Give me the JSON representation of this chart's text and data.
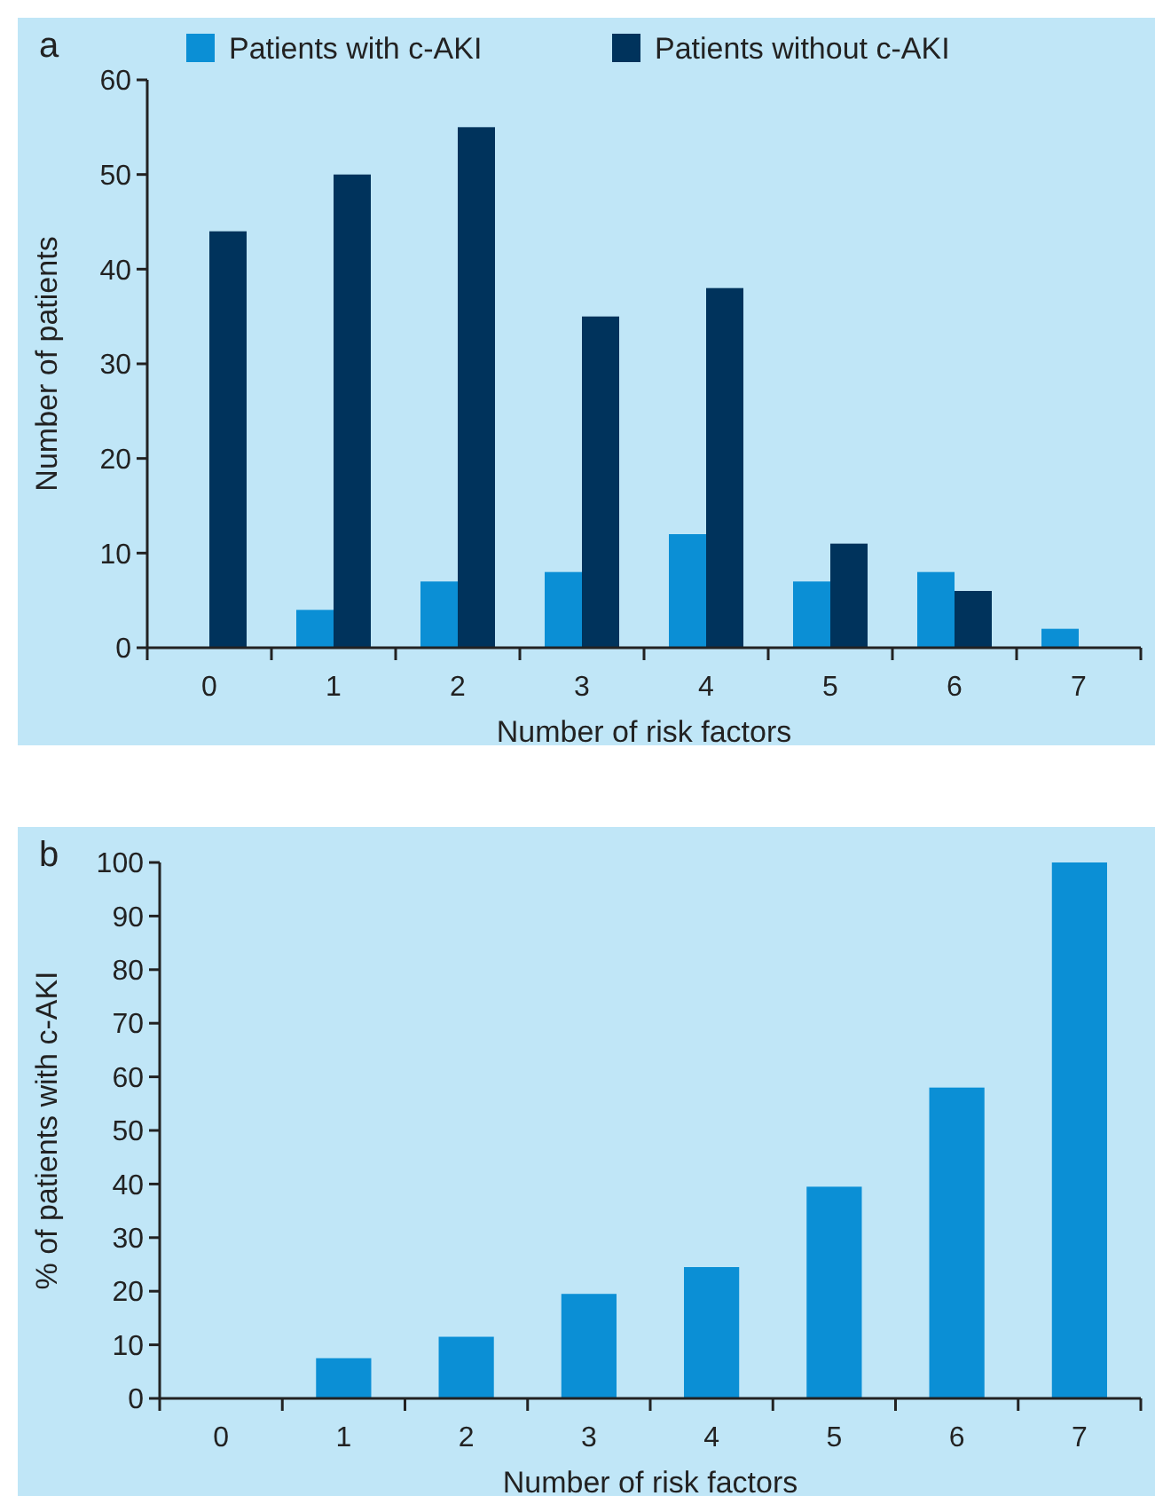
{
  "chart_data": [
    {
      "type": "bar",
      "title": "a",
      "xlabel": "Number of risk factors",
      "ylabel": "Number of patients",
      "categories": [
        "0",
        "1",
        "2",
        "3",
        "4",
        "5",
        "6",
        "7"
      ],
      "series": [
        {
          "name": "Patients with c-AKI",
          "color": "#0b8fd5",
          "values": [
            0,
            4,
            7,
            8,
            12,
            7,
            8,
            2
          ]
        },
        {
          "name": "Patients without c-AKI",
          "color": "#00335c",
          "values": [
            44,
            50,
            55,
            35,
            38,
            11,
            6,
            0
          ]
        }
      ],
      "ylim": [
        0,
        60
      ],
      "yticks": [
        0,
        10,
        20,
        30,
        40,
        50,
        60
      ],
      "legend": "top"
    },
    {
      "type": "bar",
      "title": "b",
      "xlabel": "Number of risk factors",
      "ylabel": "% of patients with c-AKI",
      "categories": [
        "0",
        "1",
        "2",
        "3",
        "4",
        "5",
        "6",
        "7"
      ],
      "series": [
        {
          "color": "#0b8fd5",
          "values": [
            0,
            7.5,
            11.5,
            19.5,
            24.5,
            39.5,
            58,
            100
          ]
        }
      ],
      "ylim": [
        0,
        100
      ],
      "yticks": [
        0,
        10,
        20,
        30,
        40,
        50,
        60,
        70,
        80,
        90,
        100
      ]
    }
  ]
}
